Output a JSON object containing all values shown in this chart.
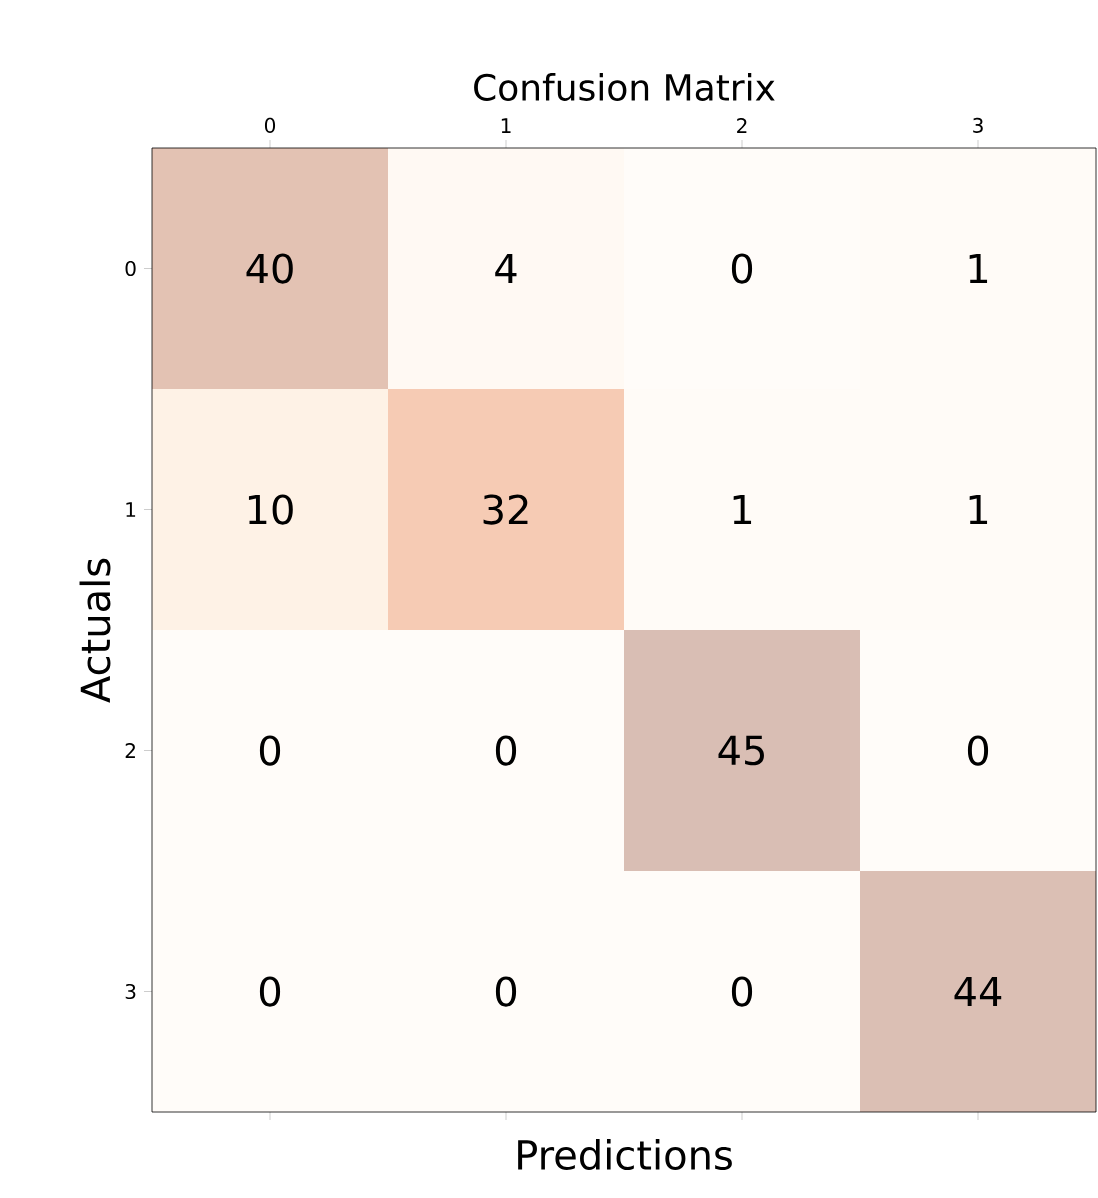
{
  "chart_data": {
    "type": "heatmap",
    "title": "Confusion Matrix",
    "xlabel": "Predictions",
    "ylabel": "Actuals",
    "categories": [
      "0",
      "1",
      "2",
      "3"
    ],
    "y_categories": [
      "0",
      "1",
      "2",
      "3"
    ],
    "cells": [
      [
        40,
        4,
        0,
        1
      ],
      [
        10,
        32,
        1,
        1
      ],
      [
        0,
        0,
        45,
        0
      ],
      [
        0,
        0,
        0,
        44
      ]
    ],
    "data_labels": true
  }
}
